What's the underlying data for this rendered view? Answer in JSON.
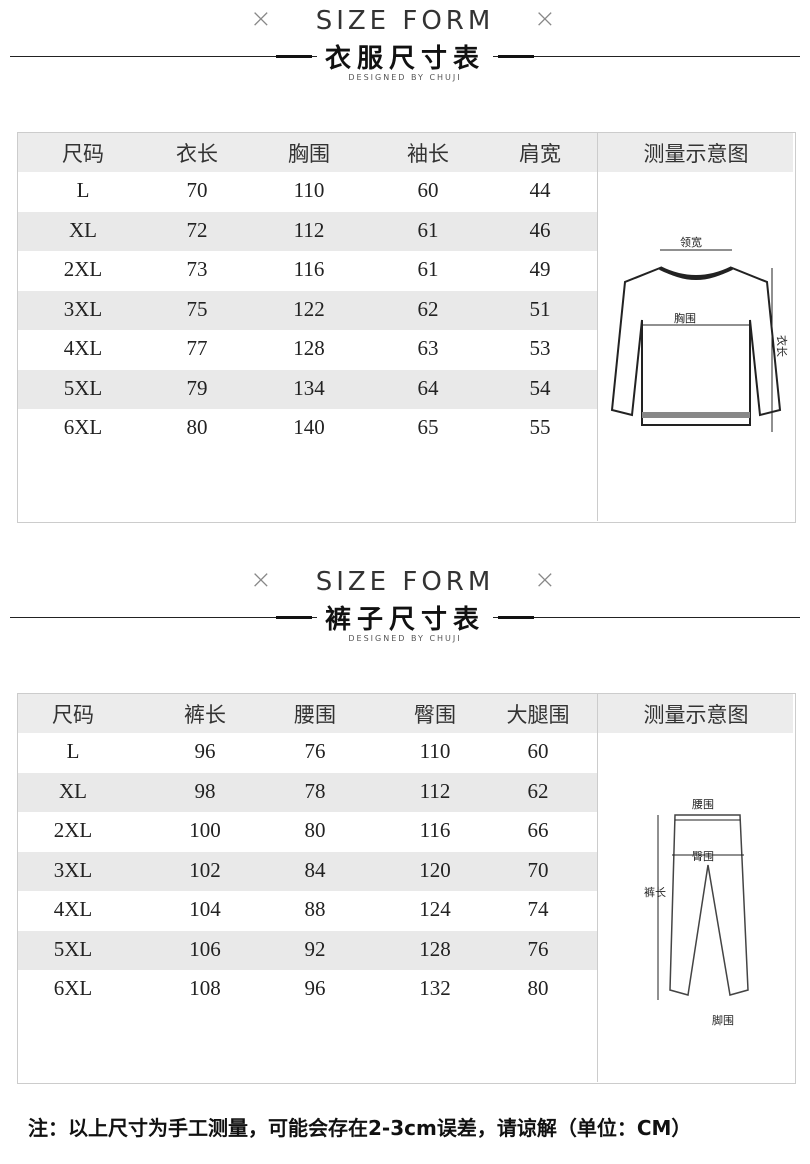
{
  "sections": [
    {
      "heading_en": "SIZE FORM",
      "heading_cn": "衣服尺寸表",
      "designer": "DESIGNED BY CHUJI",
      "table": {
        "header": [
          "尺码",
          "衣长",
          "胸围",
          "袖长",
          "肩宽"
        ],
        "rows": [
          [
            "L",
            "70",
            "110",
            "60",
            "44"
          ],
          [
            "XL",
            "72",
            "112",
            "61",
            "46"
          ],
          [
            "2XL",
            "73",
            "116",
            "61",
            "49"
          ],
          [
            "3XL",
            "75",
            "122",
            "62",
            "51"
          ],
          [
            "4XL",
            "77",
            "128",
            "63",
            "53"
          ],
          [
            "5XL",
            "79",
            "134",
            "64",
            "54"
          ],
          [
            "6XL",
            "80",
            "140",
            "65",
            "55"
          ]
        ]
      },
      "diagram": {
        "title": "测量示意图",
        "labels": [
          "领宽",
          "胸围",
          "衣长"
        ]
      }
    },
    {
      "heading_en": "SIZE FORM",
      "heading_cn": "裤子尺寸表",
      "designer": "DESIGNED BY CHUJI",
      "table": {
        "header": [
          "尺码",
          "裤长",
          "腰围",
          "臀围",
          "大腿围"
        ],
        "rows": [
          [
            "L",
            "96",
            "76",
            "110",
            "60"
          ],
          [
            "XL",
            "98",
            "78",
            "112",
            "62"
          ],
          [
            "2XL",
            "100",
            "80",
            "116",
            "66"
          ],
          [
            "3XL",
            "102",
            "84",
            "120",
            "70"
          ],
          [
            "4XL",
            "104",
            "88",
            "124",
            "74"
          ],
          [
            "5XL",
            "106",
            "92",
            "128",
            "76"
          ],
          [
            "6XL",
            "108",
            "96",
            "132",
            "80"
          ]
        ]
      },
      "diagram": {
        "title": "测量示意图",
        "labels": [
          "腰围",
          "臀围",
          "裤长",
          "脚围"
        ]
      }
    }
  ],
  "note": "注：以上尺寸为手工测量，可能会存在2-3cm误差，请谅解（单位：CM）"
}
